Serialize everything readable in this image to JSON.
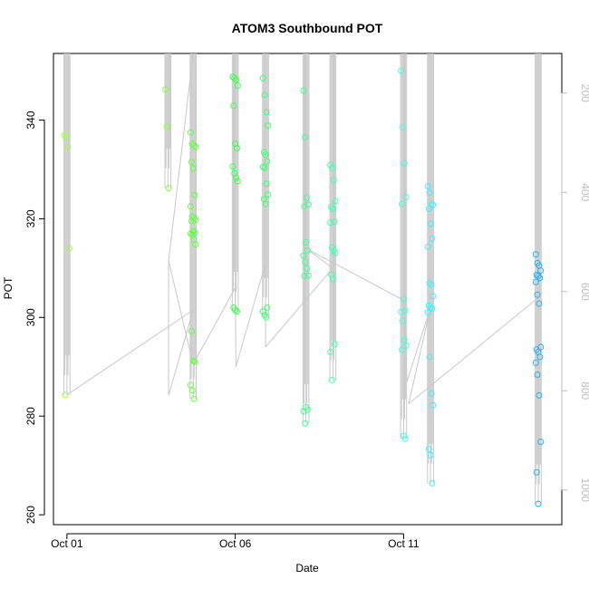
{
  "chart_data": {
    "type": "scatter",
    "title": "ATOM3 Southbound POT",
    "xlabel": "Date",
    "ylabel": "POT",
    "x_ticks": [
      {
        "value": 0,
        "label": "Oct 01"
      },
      {
        "value": 5,
        "label": "Oct 06"
      },
      {
        "value": 10,
        "label": "Oct 11"
      }
    ],
    "xlim": [
      -0.4,
      14.7
    ],
    "ylim": [
      258,
      353.5
    ],
    "y_ticks": [
      260,
      280,
      300,
      320,
      340
    ],
    "right_axis": {
      "note": "pressure-like secondary axis (gray), reversed",
      "ticks": [
        200,
        400,
        600,
        800,
        1000
      ],
      "lim": [
        1070,
        120
      ],
      "color": "#bdbdbd"
    },
    "profile_line_color": "#c8c8c8",
    "groups": [
      {
        "x": 0.0,
        "color": "#a0ff40",
        "values": [
          337,
          336.5,
          334.5,
          314,
          284.3
        ]
      },
      {
        "x": 3.0,
        "color": "#80ff40",
        "values": [
          346.2,
          338.7,
          326.2
        ]
      },
      {
        "x": 3.75,
        "color": "#60ff40",
        "values": [
          337.5,
          335.2,
          334.8,
          334.5,
          331.5,
          330.2,
          324.8,
          322.5,
          320.5,
          320.2,
          319.8,
          319.5,
          317.5,
          317.2,
          317.0,
          316.8,
          315.8,
          314.8,
          297.2,
          291.2,
          291.0,
          286.3,
          285.2,
          283.5
        ]
      },
      {
        "x": 5.0,
        "color": "#40ff50",
        "values": [
          348.8,
          348.5,
          348.2,
          347.0,
          342.9,
          335.2,
          334.3,
          330.6,
          329.2,
          328.3,
          327.6,
          302.0,
          301.5,
          301.2
        ]
      },
      {
        "x": 5.9,
        "color": "#40ff70",
        "values": [
          348.5,
          345.1,
          341.6,
          338.9,
          333.5,
          333.0,
          331.6,
          330.5,
          330.3,
          327.1,
          324.9,
          324.0,
          323.0,
          302.0,
          301.2,
          300.5,
          300.0
        ]
      },
      {
        "x": 7.1,
        "color": "#40ff90",
        "values": [
          346.0,
          336.5,
          324.3,
          322.9,
          322.5,
          315.2,
          313.6,
          312.5,
          311.2,
          309.9,
          308.5,
          308.4,
          281.8,
          281.3,
          281.0,
          278.5
        ]
      },
      {
        "x": 7.9,
        "color": "#40ffb0",
        "values": [
          330.9,
          330.3,
          327.8,
          323.6,
          322.4,
          322.0,
          319.4,
          319.2,
          314.2,
          313.6,
          313.1,
          308.7,
          307.8,
          294.6,
          293.0,
          287.3
        ]
      },
      {
        "x": 10.0,
        "color": "#40ffe0",
        "values": [
          350.0,
          338.5,
          331.2,
          324.4,
          323.0,
          303.7,
          301.4,
          301.1,
          299.3,
          295.4,
          294.3,
          293.4,
          276.0,
          275.4
        ]
      },
      {
        "x": 10.8,
        "color": "#40f0ff",
        "values": [
          326.6,
          325.3,
          323.0,
          322.8,
          322.0,
          319.0,
          316.0,
          314.3,
          307.0,
          306.6,
          304.3,
          302.4,
          302.0,
          301.8,
          301.0,
          292.0,
          284.6,
          282.2,
          273.3,
          272.1,
          266.4
        ]
      },
      {
        "x": 14.0,
        "color": "#2ab0f0",
        "values": [
          312.8,
          311.0,
          310.5,
          309.5,
          308.6,
          308.4,
          308.0,
          307.2,
          304.6,
          302.8,
          294.0,
          293.5,
          293.0,
          292.0,
          290.8,
          288.4,
          284.2,
          274.8,
          268.6,
          262.2
        ]
      }
    ],
    "profile_bottoms": [
      {
        "x": 0.0,
        "y": 284.3
      },
      {
        "x": 3.75,
        "y": 301.5
      },
      {
        "x": 3.02,
        "y": 284.2
      },
      {
        "x": 3.02,
        "y": 311.5
      },
      {
        "x": 3.75,
        "y": 290.5
      },
      {
        "x": 5.0,
        "y": 306.0
      },
      {
        "x": 5.02,
        "y": 290.0
      },
      {
        "x": 5.9,
        "y": 311.0
      },
      {
        "x": 5.9,
        "y": 294.0
      },
      {
        "x": 7.9,
        "y": 310.0
      },
      {
        "x": 7.1,
        "y": 314.0
      },
      {
        "x": 10.0,
        "y": 303.5
      },
      {
        "x": 10.1,
        "y": 287.0
      },
      {
        "x": 10.8,
        "y": 302.0
      },
      {
        "x": 10.15,
        "y": 282.5
      },
      {
        "x": 14.0,
        "y": 304.0
      }
    ]
  }
}
